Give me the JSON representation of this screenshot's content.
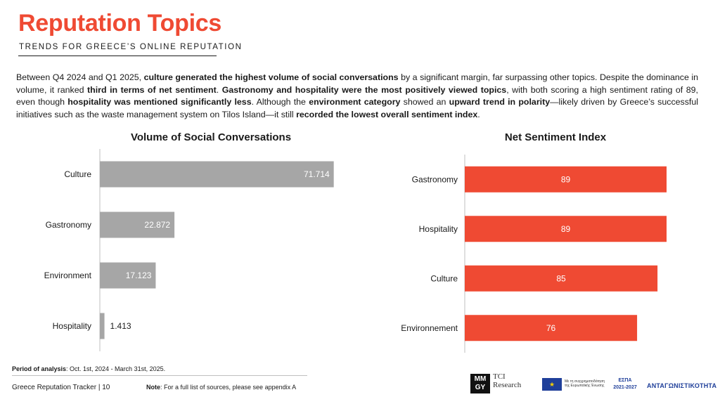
{
  "header": {
    "title": "Reputation Topics",
    "subtitle": "TRENDS FOR GREECE’S ONLINE REPUTATION"
  },
  "paragraph": [
    {
      "t": "Between Q4 2024 and Q1 2025, ",
      "b": false
    },
    {
      "t": "culture generated the highest volume of social conversations",
      "b": true
    },
    {
      "t": " by a significant margin, far surpassing other topics. Despite the dominance in volume, it ranked ",
      "b": false
    },
    {
      "t": "third in terms of net sentiment",
      "b": true
    },
    {
      "t": ". ",
      "b": false
    },
    {
      "t": "Gastronomy and hospitality were the most positively viewed topics",
      "b": true
    },
    {
      "t": ", with both scoring a high sentiment rating of 89, even though ",
      "b": false
    },
    {
      "t": "hospitality was mentioned significantly less",
      "b": true
    },
    {
      "t": ".  Although the ",
      "b": false
    },
    {
      "t": "environment category",
      "b": true
    },
    {
      "t": " showed an ",
      "b": false
    },
    {
      "t": "upward trend in polarity",
      "b": true
    },
    {
      "t": "—likely driven by Greece’s successful initiatives such as the waste management system on Tilos Island—it still ",
      "b": false
    },
    {
      "t": "recorded the lowest overall sentiment index",
      "b": true
    },
    {
      "t": ".",
      "b": false
    }
  ],
  "chart_data": [
    {
      "type": "bar",
      "orientation": "horizontal",
      "title": "Volume of Social Conversations",
      "categories": [
        "Culture",
        "Gastronomy",
        "Environment",
        "Hospitality"
      ],
      "values": [
        71.714,
        22.872,
        17.123,
        1.413
      ],
      "value_labels": [
        "71.714",
        "22.872",
        "17.123",
        "1.413"
      ],
      "xlim": [
        0,
        72
      ],
      "color": "#a6a6a6",
      "label_color": "#ffffff",
      "grid": false
    },
    {
      "type": "bar",
      "orientation": "horizontal",
      "title": "Net Sentiment Index",
      "categories": [
        "Gastronomy",
        "Hospitality",
        "Culture",
        "Environnement"
      ],
      "values": [
        89,
        89,
        85,
        76
      ],
      "value_labels": [
        "89",
        "89",
        "85",
        "76"
      ],
      "xlim": [
        0,
        89
      ],
      "color": "#ef4a33",
      "label_color": "#ffffff",
      "grid": false
    }
  ],
  "footer": {
    "period_label": "Period of analysis",
    "period_value": ": Oct. 1st, 2024 - March 31st, 2025.",
    "tracker": "Greece Reputation Tracker |  10",
    "note_label": "Note",
    "note_value": ": For a full list of sources, please see appendix A"
  },
  "logos": {
    "mmgy": "MM GY",
    "tci": "TCI Research",
    "eu_text": "Με τη συγχρηματοδότηση της Ευρωπαϊκής Ένωσης",
    "espa": "ΕΣΠΑ 2021-2027",
    "antag": "ΑΝΤΑΓΩΝΙΣΤΙΚΟΤΗΤΑ"
  }
}
